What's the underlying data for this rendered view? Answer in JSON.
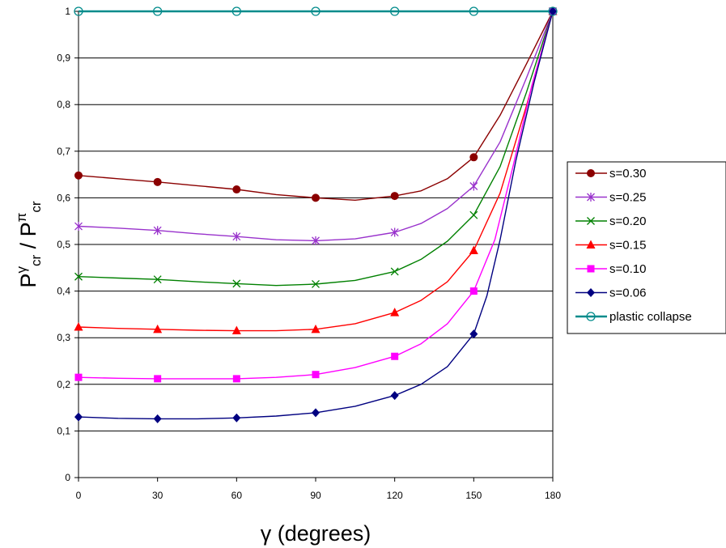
{
  "chart_data": {
    "type": "line",
    "title": "",
    "xlabel": "γ (degrees)",
    "ylabel": {
      "symbol": "P",
      "sup1": "γ",
      "sub1": "cr",
      "separator": " / ",
      "sup2": "π",
      "sub2": "cr"
    },
    "xlim": [
      0,
      180
    ],
    "ylim": [
      0,
      1
    ],
    "xticks": [
      "0",
      "30",
      "60",
      "90",
      "120",
      "150",
      "180"
    ],
    "yticks": [
      "0",
      "0,1",
      "0,2",
      "0,3",
      "0,4",
      "0,5",
      "0,6",
      "0,7",
      "0,8",
      "0,9",
      "1"
    ],
    "grid": "horizontal",
    "legend_position": "right",
    "series": [
      {
        "name": "s=0.30",
        "color": "#8b0000",
        "marker": "circle",
        "markers": [
          [
            0,
            0.648
          ],
          [
            30,
            0.634
          ],
          [
            60,
            0.618
          ],
          [
            90,
            0.6
          ],
          [
            120,
            0.604
          ],
          [
            150,
            0.687
          ],
          [
            180,
            1.0
          ]
        ],
        "curve": [
          [
            0,
            0.648
          ],
          [
            15,
            0.641
          ],
          [
            30,
            0.634
          ],
          [
            45,
            0.626
          ],
          [
            60,
            0.618
          ],
          [
            75,
            0.607
          ],
          [
            90,
            0.6
          ],
          [
            105,
            0.595
          ],
          [
            120,
            0.604
          ],
          [
            130,
            0.615
          ],
          [
            140,
            0.641
          ],
          [
            150,
            0.687
          ],
          [
            160,
            0.777
          ],
          [
            170,
            0.887
          ],
          [
            180,
            1.0
          ]
        ]
      },
      {
        "name": "s=0.25",
        "color": "#9932cc",
        "marker": "asterisk",
        "markers": [
          [
            0,
            0.539
          ],
          [
            30,
            0.53
          ],
          [
            60,
            0.517
          ],
          [
            90,
            0.508
          ],
          [
            120,
            0.526
          ],
          [
            150,
            0.625
          ],
          [
            180,
            1.0
          ]
        ],
        "curve": [
          [
            0,
            0.539
          ],
          [
            15,
            0.535
          ],
          [
            30,
            0.53
          ],
          [
            45,
            0.523
          ],
          [
            60,
            0.517
          ],
          [
            75,
            0.51
          ],
          [
            90,
            0.508
          ],
          [
            105,
            0.512
          ],
          [
            120,
            0.526
          ],
          [
            130,
            0.545
          ],
          [
            140,
            0.577
          ],
          [
            150,
            0.625
          ],
          [
            160,
            0.72
          ],
          [
            170,
            0.857
          ],
          [
            180,
            1.0
          ]
        ]
      },
      {
        "name": "s=0.20",
        "color": "#008000",
        "marker": "x",
        "markers": [
          [
            0,
            0.431
          ],
          [
            30,
            0.425
          ],
          [
            60,
            0.416
          ],
          [
            90,
            0.415
          ],
          [
            120,
            0.442
          ],
          [
            150,
            0.563
          ],
          [
            180,
            1.0
          ]
        ],
        "curve": [
          [
            0,
            0.431
          ],
          [
            15,
            0.428
          ],
          [
            30,
            0.425
          ],
          [
            45,
            0.42
          ],
          [
            60,
            0.416
          ],
          [
            75,
            0.412
          ],
          [
            90,
            0.415
          ],
          [
            105,
            0.423
          ],
          [
            120,
            0.442
          ],
          [
            130,
            0.468
          ],
          [
            140,
            0.507
          ],
          [
            150,
            0.563
          ],
          [
            160,
            0.667
          ],
          [
            170,
            0.826
          ],
          [
            180,
            1.0
          ]
        ]
      },
      {
        "name": "s=0.15",
        "color": "#ff0000",
        "marker": "triangle",
        "markers": [
          [
            0,
            0.323
          ],
          [
            30,
            0.318
          ],
          [
            60,
            0.315
          ],
          [
            90,
            0.318
          ],
          [
            120,
            0.354
          ],
          [
            150,
            0.487
          ],
          [
            180,
            1.0
          ]
        ],
        "curve": [
          [
            0,
            0.323
          ],
          [
            15,
            0.32
          ],
          [
            30,
            0.318
          ],
          [
            45,
            0.316
          ],
          [
            60,
            0.315
          ],
          [
            75,
            0.315
          ],
          [
            90,
            0.318
          ],
          [
            105,
            0.33
          ],
          [
            120,
            0.354
          ],
          [
            130,
            0.38
          ],
          [
            140,
            0.42
          ],
          [
            150,
            0.487
          ],
          [
            160,
            0.61
          ],
          [
            170,
            0.797
          ],
          [
            180,
            1.0
          ]
        ]
      },
      {
        "name": "s=0.10",
        "color": "#ff00ff",
        "marker": "square",
        "markers": [
          [
            0,
            0.215
          ],
          [
            30,
            0.212
          ],
          [
            60,
            0.212
          ],
          [
            90,
            0.221
          ],
          [
            120,
            0.26
          ],
          [
            150,
            0.4
          ],
          [
            180,
            1.0
          ]
        ],
        "curve": [
          [
            0,
            0.215
          ],
          [
            15,
            0.213
          ],
          [
            30,
            0.212
          ],
          [
            45,
            0.212
          ],
          [
            60,
            0.212
          ],
          [
            75,
            0.215
          ],
          [
            90,
            0.221
          ],
          [
            105,
            0.236
          ],
          [
            120,
            0.26
          ],
          [
            130,
            0.287
          ],
          [
            140,
            0.33
          ],
          [
            150,
            0.4
          ],
          [
            158,
            0.51
          ],
          [
            165,
            0.67
          ],
          [
            172,
            0.84
          ],
          [
            180,
            1.0
          ]
        ]
      },
      {
        "name": "s=0.06",
        "color": "#000080",
        "marker": "diamond",
        "markers": [
          [
            0,
            0.13
          ],
          [
            30,
            0.126
          ],
          [
            60,
            0.128
          ],
          [
            90,
            0.139
          ],
          [
            120,
            0.176
          ],
          [
            150,
            0.308
          ],
          [
            180,
            1.0
          ]
        ],
        "curve": [
          [
            0,
            0.13
          ],
          [
            15,
            0.127
          ],
          [
            30,
            0.126
          ],
          [
            45,
            0.126
          ],
          [
            60,
            0.128
          ],
          [
            75,
            0.132
          ],
          [
            90,
            0.139
          ],
          [
            105,
            0.153
          ],
          [
            120,
            0.176
          ],
          [
            130,
            0.2
          ],
          [
            140,
            0.238
          ],
          [
            150,
            0.308
          ],
          [
            155,
            0.39
          ],
          [
            160,
            0.51
          ],
          [
            166,
            0.68
          ],
          [
            173,
            0.85
          ],
          [
            180,
            1.0
          ]
        ]
      },
      {
        "name": "plastic collapse",
        "color": "#008b8b",
        "marker": "open-circle",
        "markers": [
          [
            0,
            1.0
          ],
          [
            30,
            1.0
          ],
          [
            60,
            1.0
          ],
          [
            90,
            1.0
          ],
          [
            120,
            1.0
          ],
          [
            150,
            1.0
          ],
          [
            180,
            1.0
          ]
        ],
        "curve": [
          [
            0,
            1.0
          ],
          [
            180,
            1.0
          ]
        ]
      }
    ]
  }
}
